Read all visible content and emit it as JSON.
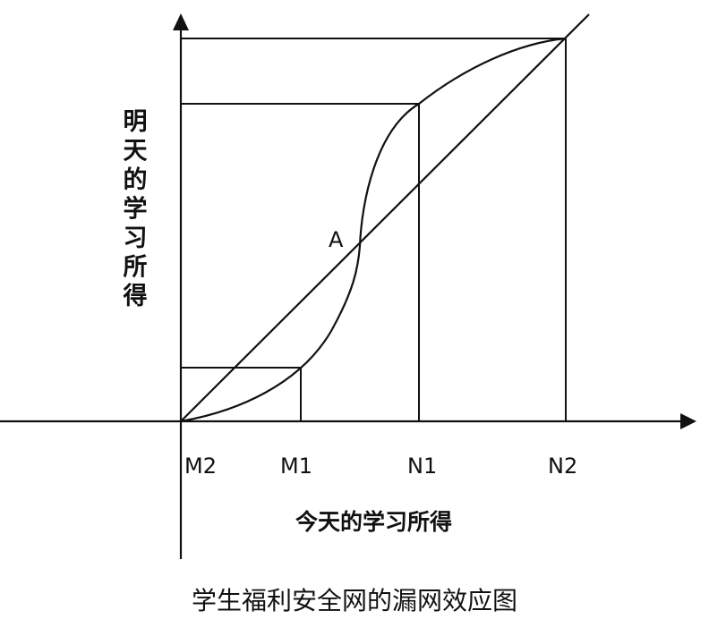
{
  "diagram": {
    "caption": "学生福利安全网的漏网效应图",
    "x_axis_label": "今天的学习所得",
    "y_axis_label": "明天的学习所得",
    "x_ticks": [
      "M2",
      "M1",
      "N1",
      "N2"
    ],
    "point_label": "A"
  },
  "colors": {
    "line": "#111111",
    "background": "#ffffff"
  }
}
